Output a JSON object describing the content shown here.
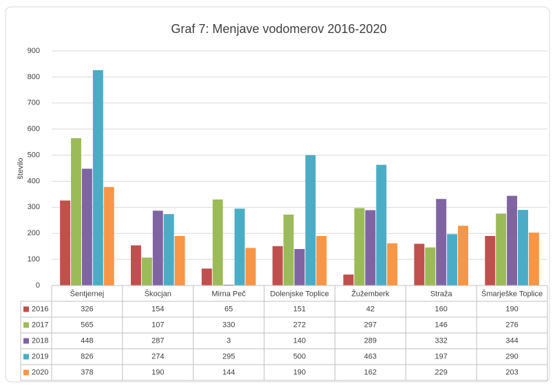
{
  "chart_data": {
    "type": "bar",
    "title": "Graf 7: Menjave vodomerov 2016-2020",
    "y_label": "število",
    "categories": [
      "Šentjernej",
      "Škocjan",
      "Mirna Peč",
      "Dolenjske Toplice",
      "Žužemberk",
      "Straža",
      "Šmarješke Toplice"
    ],
    "series": [
      {
        "name": "2016",
        "color": "#c0504d",
        "values": [
          326,
          154,
          65,
          151,
          42,
          160,
          190
        ]
      },
      {
        "name": "2017",
        "color": "#9bbb59",
        "values": [
          565,
          107,
          330,
          272,
          297,
          146,
          276
        ]
      },
      {
        "name": "2018",
        "color": "#8064a2",
        "values": [
          448,
          287,
          3,
          140,
          289,
          332,
          344
        ]
      },
      {
        "name": "2019",
        "color": "#4bacc6",
        "values": [
          826,
          274,
          295,
          500,
          463,
          197,
          290
        ]
      },
      {
        "name": "2020",
        "color": "#f79646",
        "values": [
          378,
          190,
          144,
          190,
          162,
          229,
          203
        ]
      }
    ],
    "ylim": [
      0,
      900
    ],
    "yticks": [
      0,
      100,
      200,
      300,
      400,
      500,
      600,
      700,
      800,
      900
    ],
    "grid": true
  }
}
